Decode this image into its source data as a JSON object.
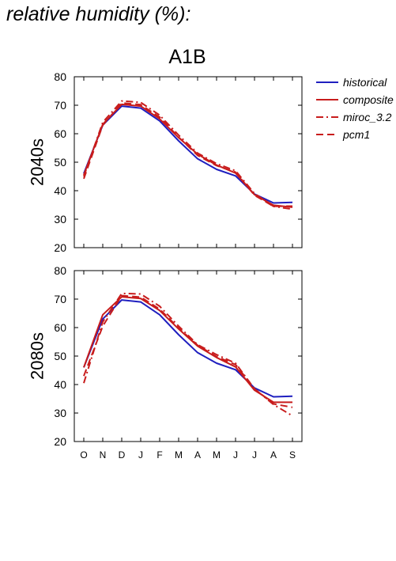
{
  "page_title": "relative humidity (%):",
  "chart_data": {
    "type": "line",
    "title": "A1B",
    "months": [
      "O",
      "N",
      "D",
      "J",
      "F",
      "M",
      "A",
      "M",
      "J",
      "J",
      "A",
      "S"
    ],
    "ylim": [
      20,
      80
    ],
    "yticks": [
      20,
      30,
      40,
      50,
      60,
      70,
      80
    ],
    "grid": false,
    "legend_position": "right",
    "legend": [
      {
        "name": "historical",
        "color": "#1f1fbf",
        "dash": "solid"
      },
      {
        "name": "composite",
        "color": "#c81c1c",
        "dash": "solid"
      },
      {
        "name": "miroc_3.2",
        "color": "#c81c1c",
        "dash": "dash-dot"
      },
      {
        "name": "pcm1",
        "color": "#c81c1c",
        "dash": "dashed"
      }
    ],
    "panels": [
      {
        "ylabel": "2040s",
        "series": [
          {
            "name": "historical",
            "values": [
              46,
              63,
              69.7,
              69,
              64.5,
              57.5,
              51.2,
              47.5,
              45.2,
              38.8,
              35.7,
              35.9
            ]
          },
          {
            "name": "composite",
            "values": [
              45.5,
              63.3,
              70.3,
              69.7,
              65.2,
              58.6,
              52.8,
              49,
              46.2,
              38.6,
              34.9,
              34.2
            ]
          },
          {
            "name": "miroc_3.2",
            "values": [
              45,
              64,
              71.5,
              71,
              66.5,
              59.5,
              53.2,
              49.5,
              47,
              39,
              34.5,
              33.5
            ]
          },
          {
            "name": "pcm1",
            "values": [
              44.2,
              63,
              70.8,
              70.2,
              65.8,
              58.8,
              52.4,
              48.8,
              46.5,
              38.4,
              34.5,
              34.6
            ]
          }
        ]
      },
      {
        "ylabel": "2080s",
        "series": [
          {
            "name": "historical",
            "values": [
              46,
              63,
              69.7,
              69,
              64.5,
              57.5,
              51.2,
              47.5,
              45.2,
              38.8,
              35.7,
              35.9
            ]
          },
          {
            "name": "composite",
            "values": [
              46,
              64.5,
              70.8,
              70.2,
              66,
              59.5,
              53.5,
              49.5,
              46.2,
              38,
              33.8,
              33.8
            ]
          },
          {
            "name": "miroc_3.2",
            "values": [
              40.5,
              62,
              72,
              71.8,
              67.5,
              60.5,
              54,
              50.5,
              47.5,
              38.5,
              33,
              29
            ]
          },
          {
            "name": "pcm1",
            "values": [
              43,
              60.5,
              71.2,
              70.7,
              66.5,
              59.8,
              53.8,
              49.8,
              47,
              38.5,
              33.2,
              32
            ]
          }
        ]
      }
    ]
  }
}
